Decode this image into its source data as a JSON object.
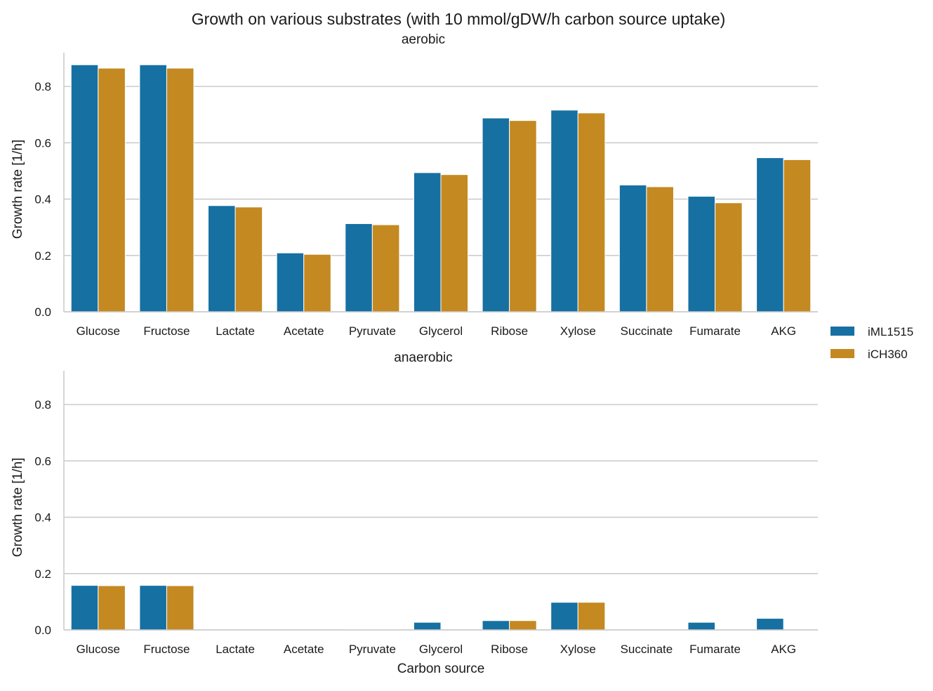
{
  "chart_data": {
    "type": "bar",
    "title": "Growth on various substrates (with 10 mmol/gDW/h carbon source uptake)",
    "categories": [
      "Glucose",
      "Fructose",
      "Lactate",
      "Acetate",
      "Pyruvate",
      "Glycerol",
      "Ribose",
      "Xylose",
      "Succinate",
      "Fumarate",
      "AKG"
    ],
    "legend": [
      {
        "name": "iML1515",
        "color": "#1670a2"
      },
      {
        "name": "iCH360",
        "color": "#c48920"
      }
    ],
    "xlabel": "Carbon source",
    "ylabel": "Growth rate [1/h]",
    "ylim": [
      0,
      0.92
    ],
    "yticks": [
      "0.0",
      "0.2",
      "0.4",
      "0.6",
      "0.8"
    ],
    "ytick_values": [
      0.0,
      0.2,
      0.4,
      0.6,
      0.8
    ],
    "panels": [
      {
        "title": "aerobic",
        "series": [
          {
            "name": "iML1515",
            "values": [
              0.877,
              0.877,
              0.377,
              0.209,
              0.313,
              0.494,
              0.688,
              0.716,
              0.45,
              0.41,
              0.547
            ]
          },
          {
            "name": "iCH360",
            "values": [
              0.865,
              0.865,
              0.372,
              0.204,
              0.309,
              0.487,
              0.679,
              0.706,
              0.444,
              0.387,
              0.54
            ]
          }
        ]
      },
      {
        "title": "anaerobic",
        "series": [
          {
            "name": "iML1515",
            "values": [
              0.158,
              0.158,
              0.0,
              0.0,
              0.002,
              0.027,
              0.033,
              0.098,
              0.0,
              0.027,
              0.041
            ]
          },
          {
            "name": "iCH360",
            "values": [
              0.157,
              0.157,
              0.0,
              0.0,
              0.002,
              0.0,
              0.033,
              0.098,
              0.0,
              0.0,
              0.0
            ]
          }
        ]
      }
    ]
  }
}
